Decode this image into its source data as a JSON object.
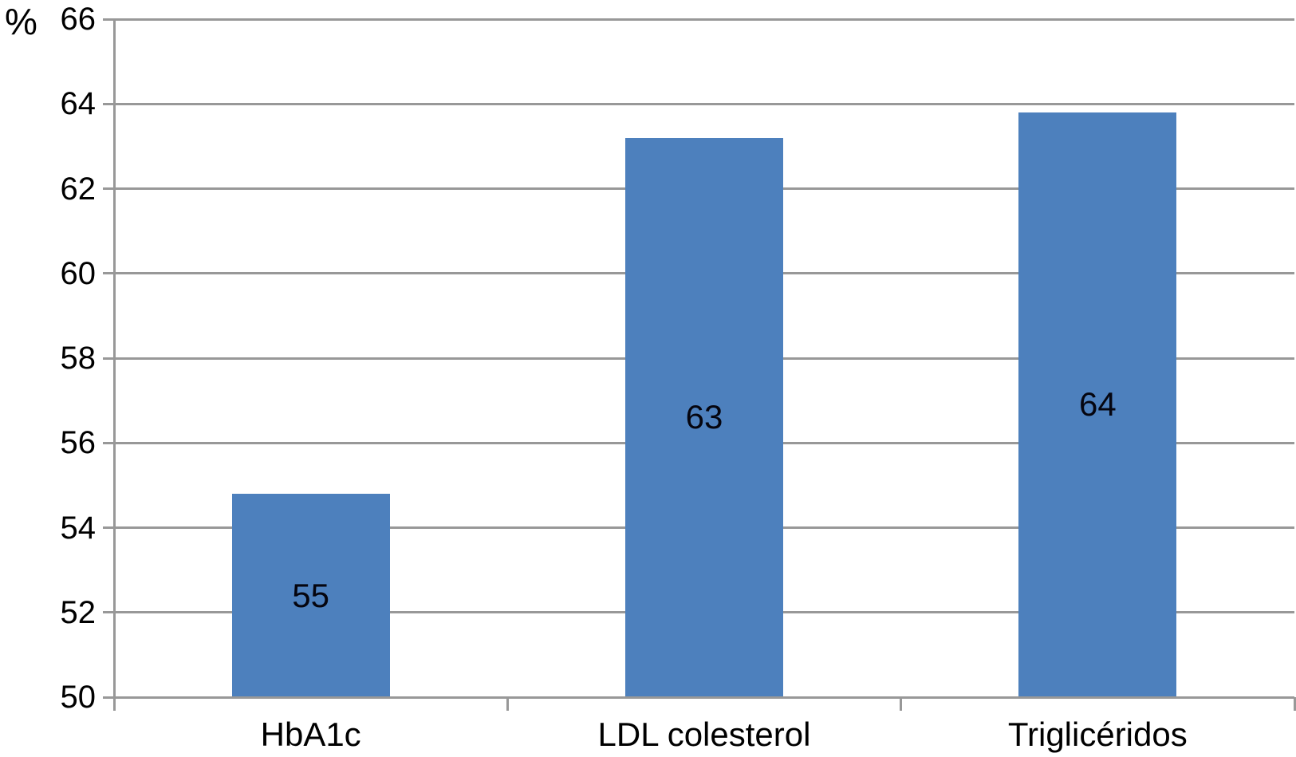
{
  "chart_data": {
    "type": "bar",
    "title": "",
    "xlabel": "",
    "ylabel": "%",
    "categories": [
      "HbA1c",
      "LDL colesterol",
      "Triglicéridos"
    ],
    "values": [
      54.8,
      63.2,
      63.8
    ],
    "data_labels": [
      "55",
      "63",
      "64"
    ],
    "data_label_position": "inside-center",
    "ylim": [
      50,
      66
    ],
    "yticks": [
      50,
      52,
      54,
      56,
      58,
      60,
      62,
      64,
      66
    ],
    "grid": true,
    "legend": false,
    "colors": {
      "bar": "#4d80bd",
      "gridline": "#989898",
      "axis": "#989898",
      "text": "#000000",
      "data_label": "#05050f",
      "background": "#ffffff"
    }
  }
}
